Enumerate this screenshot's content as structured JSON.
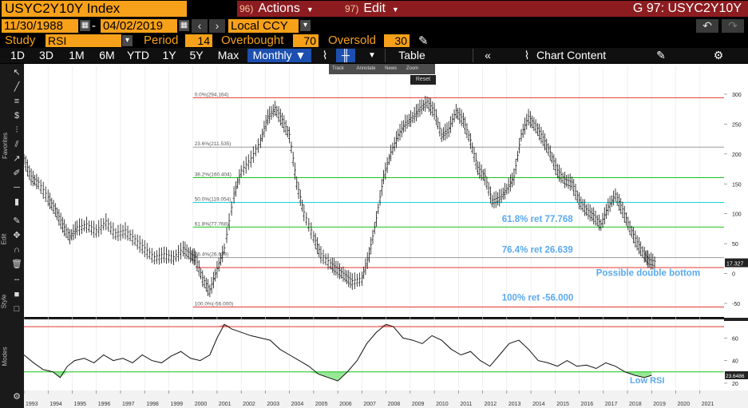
{
  "header": {
    "ticker": "USYC2Y10Y Index",
    "actions": {
      "num": "96)",
      "label": "Actions"
    },
    "edit": {
      "num": "97)",
      "label": "Edit"
    },
    "title": "G 97: USYC2Y10Y"
  },
  "dates": {
    "start": "11/30/1988",
    "dash": "-",
    "end": "04/02/2019",
    "currency": "Local CCY"
  },
  "study": {
    "study_label": "Study",
    "study_value": "RSI",
    "period_label": "Period",
    "period_value": "14",
    "overbought_label": "Overbought",
    "overbought_value": "70",
    "oversold_label": "Oversold",
    "oversold_value": "30"
  },
  "toolbar": {
    "ranges": [
      "1D",
      "3D",
      "1M",
      "6M",
      "YTD",
      "1Y",
      "5Y",
      "Max"
    ],
    "frequency": "Monthly",
    "table": "Table",
    "chart_content": "Chart Content"
  },
  "popup": {
    "items": [
      "Track",
      "Annotate",
      "News",
      "Zoom"
    ],
    "reset": "Reset"
  },
  "side_labels": {
    "favorites": "Favorites",
    "edit": "Edit",
    "style": "Style",
    "modes": "Modes"
  },
  "colors": {
    "accent": "#f7a11a",
    "menu_bar": "#8c1c20",
    "selected": "#1c4fb0",
    "price": "#111111",
    "fib_red": "#e53935",
    "fib_green": "#19c419",
    "fib_cyan": "#18d4d4",
    "fib_gray": "#9a9a9a",
    "annotation": "#5aa9f0"
  },
  "chart_data": [
    {
      "type": "ohlc-bar",
      "x_unit": "year",
      "x_range": [
        1993,
        2022
      ],
      "ylim": [
        -70,
        320
      ],
      "yticks": [
        -50,
        0,
        50,
        100,
        150,
        200,
        250,
        300
      ],
      "x_tick_labels": [
        "1993",
        "1994",
        "1995",
        "1996",
        "1997",
        "1998",
        "1999",
        "2000",
        "2001",
        "2002",
        "2003",
        "2004",
        "2005",
        "2006",
        "2007",
        "2008",
        "2009",
        "2010",
        "2011",
        "2012",
        "2013",
        "2014",
        "2015",
        "2016",
        "2017",
        "2018",
        "2019",
        "2020",
        "2021"
      ],
      "series": {
        "x": [
          1993.0,
          1993.3,
          1993.6,
          1994.0,
          1994.3,
          1994.6,
          1994.9,
          1995.2,
          1995.6,
          1996.0,
          1996.4,
          1996.8,
          1997.2,
          1997.6,
          1998.0,
          1998.4,
          1998.8,
          1999.2,
          1999.6,
          1999.9,
          2000.1,
          2000.4,
          2000.7,
          2001.0,
          2001.3,
          2001.7,
          2002.0,
          2002.4,
          2002.8,
          2003.1,
          2003.4,
          2003.7,
          2004.0,
          2004.3,
          2004.6,
          2005.0,
          2005.3,
          2005.7,
          2006.0,
          2006.3,
          2006.6,
          2007.0,
          2007.3,
          2007.6,
          2007.9,
          2008.2,
          2008.5,
          2008.8,
          2009.1,
          2009.4,
          2009.7,
          2010.0,
          2010.3,
          2010.6,
          2010.9,
          2011.2,
          2011.5,
          2011.8,
          2012.1,
          2012.4,
          2012.7,
          2013.0,
          2013.3,
          2013.6,
          2013.9,
          2014.2,
          2014.5,
          2014.8,
          2015.1,
          2015.4,
          2015.7,
          2016.0,
          2016.3,
          2016.6,
          2016.9,
          2017.2,
          2017.5,
          2017.8,
          2018.1,
          2018.4,
          2018.7,
          2018.9,
          2019.2
        ],
        "close": [
          190,
          160,
          150,
          125,
          105,
          80,
          60,
          75,
          80,
          70,
          85,
          65,
          70,
          55,
          40,
          25,
          30,
          25,
          40,
          30,
          25,
          -10,
          -30,
          5,
          40,
          130,
          170,
          190,
          220,
          260,
          275,
          255,
          230,
          150,
          100,
          60,
          30,
          15,
          5,
          -5,
          -15,
          -10,
          30,
          90,
          160,
          200,
          230,
          250,
          260,
          275,
          285,
          270,
          230,
          240,
          270,
          255,
          220,
          175,
          160,
          120,
          125,
          140,
          160,
          230,
          260,
          245,
          225,
          200,
          170,
          155,
          150,
          120,
          105,
          95,
          80,
          110,
          130,
          105,
          75,
          50,
          30,
          20,
          17
        ]
      },
      "fib_levels": [
        {
          "label": "0.0%(294.164)",
          "value": 294.164,
          "color": "red"
        },
        {
          "label": "23.6%(211.535)",
          "value": 211.535,
          "color": "gray"
        },
        {
          "label": "38.2%(160.404)",
          "value": 160.404,
          "color": "green"
        },
        {
          "label": "50.0%(119.054)",
          "value": 119.054,
          "color": "cyan"
        },
        {
          "label": "61.8%(77.768)",
          "value": 77.768,
          "color": "green"
        },
        {
          "label": "76.4%(26.639)",
          "value": 26.639,
          "color": "gray"
        },
        {
          "label": "100.0%(-56.000)",
          "value": -56.0,
          "color": "red"
        }
      ],
      "support_line": 10,
      "last_price": "17.327",
      "annotations": [
        {
          "text": "61.8% ret 77.768",
          "x": 2012.8,
          "y": 86
        },
        {
          "text": "76.4% ret 26.639",
          "x": 2012.8,
          "y": 35
        },
        {
          "text": "100% ret -56.000",
          "x": 2012.8,
          "y": -45
        },
        {
          "text": "Possible double bottom",
          "x": 2016.7,
          "y": -4
        }
      ]
    },
    {
      "type": "line",
      "title": "RSI",
      "ylim": [
        15,
        75
      ],
      "yticks": [
        20,
        40,
        60
      ],
      "overbought": 70,
      "oversold": 30,
      "last_label": "23.6486",
      "series": {
        "x": [
          1993.0,
          1993.4,
          1993.8,
          1994.2,
          1994.5,
          1994.8,
          1995.1,
          1995.5,
          1995.9,
          1996.3,
          1996.7,
          1997.1,
          1997.5,
          1997.9,
          1998.3,
          1998.7,
          1999.1,
          1999.5,
          1999.9,
          2000.3,
          2000.7,
          2001.0,
          2001.3,
          2001.6,
          2002.0,
          2002.4,
          2002.8,
          2003.2,
          2003.6,
          2004.0,
          2004.4,
          2004.8,
          2005.2,
          2005.6,
          2006.0,
          2006.4,
          2006.8,
          2007.2,
          2007.6,
          2008.0,
          2008.3,
          2008.7,
          2009.1,
          2009.5,
          2009.9,
          2010.3,
          2010.7,
          2011.1,
          2011.5,
          2011.9,
          2012.3,
          2012.7,
          2013.1,
          2013.5,
          2013.9,
          2014.3,
          2014.7,
          2015.1,
          2015.5,
          2015.9,
          2016.3,
          2016.7,
          2017.1,
          2017.5,
          2017.9,
          2018.3,
          2018.7,
          2019.0
        ],
        "values": [
          45,
          38,
          32,
          30,
          25,
          35,
          40,
          42,
          38,
          45,
          40,
          42,
          38,
          45,
          40,
          38,
          44,
          48,
          42,
          40,
          45,
          60,
          72,
          68,
          65,
          62,
          60,
          58,
          50,
          45,
          40,
          35,
          28,
          25,
          22,
          30,
          40,
          55,
          65,
          72,
          70,
          60,
          58,
          55,
          62,
          58,
          50,
          45,
          48,
          40,
          35,
          45,
          55,
          58,
          50,
          40,
          38,
          35,
          40,
          35,
          36,
          33,
          38,
          35,
          30,
          27,
          25,
          27
        ]
      },
      "annotations": [
        {
          "text": "Low RSI",
          "x": 2018.1,
          "y": 20
        }
      ]
    }
  ]
}
